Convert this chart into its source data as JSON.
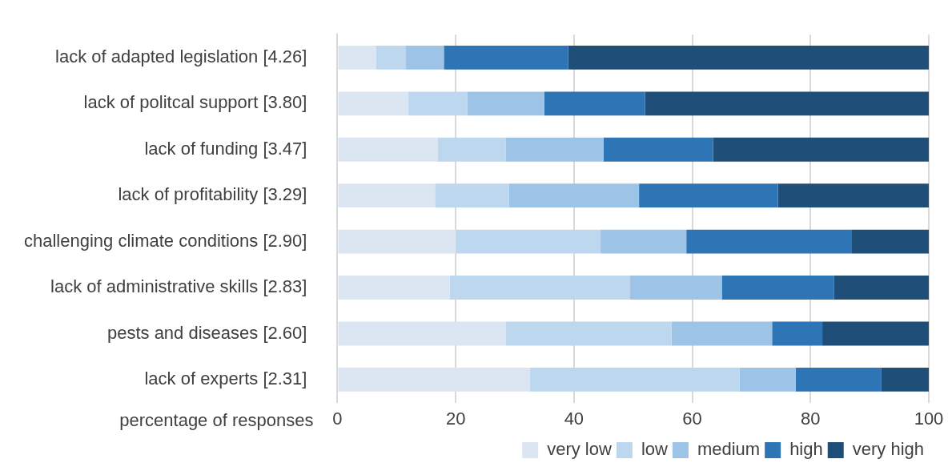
{
  "chart_data": {
    "type": "bar",
    "orientation": "horizontal",
    "stacked": true,
    "xlabel": "percentage of responses",
    "categories": [
      "lack of adapted legislation [4.26]",
      "lack of politcal support [3.80]",
      "lack of funding [3.47]",
      "lack of profitability [3.29]",
      "challenging climate conditions [2.90]",
      "lack of administrative skills [2.83]",
      "pests and diseases [2.60]",
      "lack of experts [2.31]"
    ],
    "series": [
      {
        "name": "very low",
        "color": "#dce6f2",
        "values": [
          6.5,
          12,
          17,
          16.5,
          20,
          19,
          28.5,
          32.5
        ]
      },
      {
        "name": "low",
        "color": "#bdd7ee",
        "values": [
          5,
          10,
          11.5,
          12.5,
          24.5,
          30.5,
          28,
          35.5
        ]
      },
      {
        "name": "medium",
        "color": "#9dc3e6",
        "values": [
          6.5,
          13,
          16.5,
          22,
          14.5,
          15.5,
          17,
          9.5
        ]
      },
      {
        "name": "high",
        "color": "#2e75b6",
        "values": [
          21,
          17,
          18.5,
          23.5,
          28,
          19,
          8.5,
          14.5
        ]
      },
      {
        "name": "very high",
        "color": "#1f4e79",
        "values": [
          61,
          48,
          36.5,
          25.5,
          13,
          16,
          18,
          8
        ]
      }
    ],
    "xlim": [
      0,
      100
    ],
    "xticks": [
      0,
      20,
      40,
      60,
      80,
      100
    ],
    "grid": "x",
    "legend": "bottom"
  }
}
